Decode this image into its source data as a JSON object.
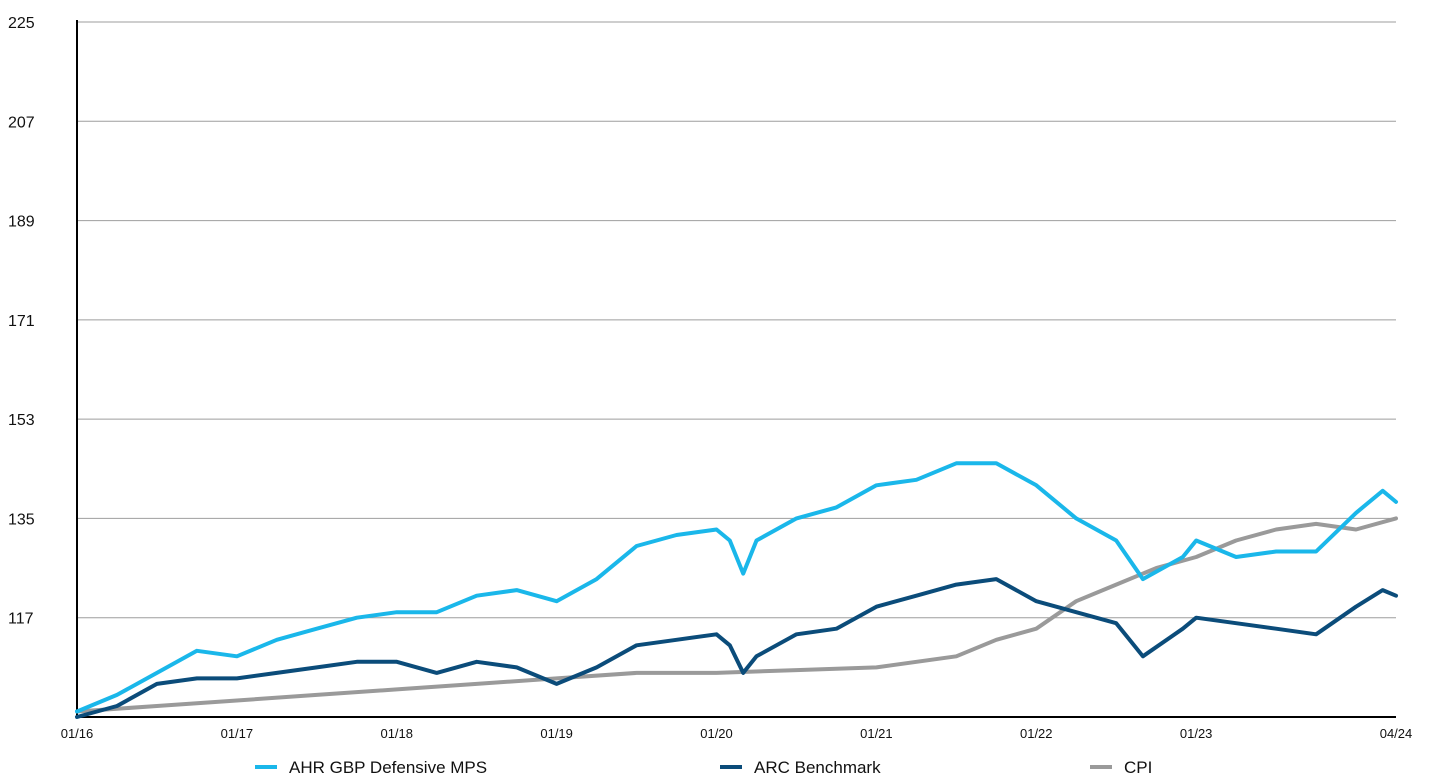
{
  "chart_data": {
    "type": "line",
    "title": "",
    "xlabel": "",
    "ylabel": "",
    "ylim": [
      99,
      225
    ],
    "y_ticks": [
      "225",
      "207",
      "189",
      "171",
      "153",
      "135",
      "117"
    ],
    "y_tick_values": [
      225,
      207,
      189,
      171,
      153,
      135,
      117
    ],
    "x_ticks": [
      "01/16",
      "01/17",
      "01/18",
      "01/19",
      "01/20",
      "01/21",
      "01/22",
      "01/23",
      "04/24"
    ],
    "x_tick_values": [
      "2016-01",
      "2017-01",
      "2018-01",
      "2019-01",
      "2020-01",
      "2021-01",
      "2022-01",
      "2023-01",
      "2024-04"
    ],
    "x_range": [
      "2016-01",
      "2024-04"
    ],
    "grid": "horizontal",
    "legend_position": "bottom",
    "series": [
      {
        "name": "AHR GBP Defensive MPS",
        "color": "#1ab7ea",
        "points": [
          [
            "2016-01",
            100
          ],
          [
            "2016-04",
            103
          ],
          [
            "2016-07",
            107
          ],
          [
            "2016-10",
            111
          ],
          [
            "2017-01",
            110
          ],
          [
            "2017-04",
            113
          ],
          [
            "2017-07",
            115
          ],
          [
            "2017-10",
            117
          ],
          [
            "2018-01",
            118
          ],
          [
            "2018-04",
            118
          ],
          [
            "2018-07",
            121
          ],
          [
            "2018-10",
            122
          ],
          [
            "2019-01",
            120
          ],
          [
            "2019-04",
            124
          ],
          [
            "2019-07",
            130
          ],
          [
            "2019-10",
            132
          ],
          [
            "2020-01",
            133
          ],
          [
            "2020-02",
            131
          ],
          [
            "2020-03",
            125
          ],
          [
            "2020-04",
            131
          ],
          [
            "2020-07",
            135
          ],
          [
            "2020-10",
            137
          ],
          [
            "2021-01",
            141
          ],
          [
            "2021-04",
            142
          ],
          [
            "2021-07",
            145
          ],
          [
            "2021-10",
            145
          ],
          [
            "2022-01",
            141
          ],
          [
            "2022-04",
            135
          ],
          [
            "2022-07",
            131
          ],
          [
            "2022-09",
            124
          ],
          [
            "2022-12",
            128
          ],
          [
            "2023-01",
            131
          ],
          [
            "2023-04",
            128
          ],
          [
            "2023-07",
            129
          ],
          [
            "2023-10",
            129
          ],
          [
            "2024-01",
            136
          ],
          [
            "2024-03",
            140
          ],
          [
            "2024-04",
            138
          ]
        ]
      },
      {
        "name": "ARC Benchmark",
        "color": "#0b4c7a",
        "points": [
          [
            "2016-01",
            99
          ],
          [
            "2016-04",
            101
          ],
          [
            "2016-07",
            105
          ],
          [
            "2016-10",
            106
          ],
          [
            "2017-01",
            106
          ],
          [
            "2017-04",
            107
          ],
          [
            "2017-07",
            108
          ],
          [
            "2017-10",
            109
          ],
          [
            "2018-01",
            109
          ],
          [
            "2018-04",
            107
          ],
          [
            "2018-07",
            109
          ],
          [
            "2018-10",
            108
          ],
          [
            "2019-01",
            105
          ],
          [
            "2019-04",
            108
          ],
          [
            "2019-07",
            112
          ],
          [
            "2019-10",
            113
          ],
          [
            "2020-01",
            114
          ],
          [
            "2020-02",
            112
          ],
          [
            "2020-03",
            107
          ],
          [
            "2020-04",
            110
          ],
          [
            "2020-07",
            114
          ],
          [
            "2020-10",
            115
          ],
          [
            "2021-01",
            119
          ],
          [
            "2021-04",
            121
          ],
          [
            "2021-07",
            123
          ],
          [
            "2021-10",
            124
          ],
          [
            "2022-01",
            120
          ],
          [
            "2022-04",
            118
          ],
          [
            "2022-07",
            116
          ],
          [
            "2022-09",
            110
          ],
          [
            "2022-12",
            115
          ],
          [
            "2023-01",
            117
          ],
          [
            "2023-04",
            116
          ],
          [
            "2023-07",
            115
          ],
          [
            "2023-10",
            114
          ],
          [
            "2024-01",
            119
          ],
          [
            "2024-03",
            122
          ],
          [
            "2024-04",
            121
          ]
        ]
      },
      {
        "name": "CPI",
        "color": "#9a9a9a",
        "points": [
          [
            "2016-01",
            100
          ],
          [
            "2016-07",
            101
          ],
          [
            "2017-01",
            102
          ],
          [
            "2017-07",
            103
          ],
          [
            "2018-01",
            104
          ],
          [
            "2018-07",
            105
          ],
          [
            "2019-01",
            106
          ],
          [
            "2019-07",
            107
          ],
          [
            "2020-01",
            107
          ],
          [
            "2020-07",
            107.5
          ],
          [
            "2021-01",
            108
          ],
          [
            "2021-07",
            110
          ],
          [
            "2021-10",
            113
          ],
          [
            "2022-01",
            115
          ],
          [
            "2022-04",
            120
          ],
          [
            "2022-07",
            123
          ],
          [
            "2022-10",
            126
          ],
          [
            "2023-01",
            128
          ],
          [
            "2023-04",
            131
          ],
          [
            "2023-07",
            133
          ],
          [
            "2023-10",
            134
          ],
          [
            "2024-01",
            133
          ],
          [
            "2024-04",
            135
          ]
        ]
      }
    ]
  }
}
